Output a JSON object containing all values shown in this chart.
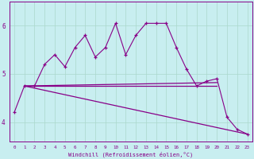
{
  "xlabel": "Windchill (Refroidissement éolien,°C)",
  "background_color": "#c8eef0",
  "line_color": "#880088",
  "xlim": [
    -0.5,
    23.5
  ],
  "ylim": [
    3.6,
    6.5
  ],
  "yticks": [
    4,
    5,
    6
  ],
  "xticks": [
    0,
    1,
    2,
    3,
    4,
    5,
    6,
    7,
    8,
    9,
    10,
    11,
    12,
    13,
    14,
    15,
    16,
    17,
    18,
    19,
    20,
    21,
    22,
    23
  ],
  "curve1_x": [
    0,
    1,
    2,
    3,
    4,
    5,
    6,
    7,
    8,
    9,
    10,
    11,
    12,
    13,
    14,
    15,
    16,
    17,
    18,
    19,
    20,
    21,
    22,
    23
  ],
  "curve1_y": [
    4.2,
    4.75,
    4.75,
    5.2,
    5.4,
    5.15,
    5.55,
    5.8,
    5.35,
    5.55,
    6.05,
    5.4,
    5.8,
    6.05,
    6.05,
    6.05,
    5.55,
    5.1,
    4.75,
    4.85,
    4.9,
    4.1,
    3.85,
    3.75
  ],
  "line1": {
    "x": [
      1,
      20
    ],
    "y": [
      4.75,
      4.75
    ]
  },
  "line2": {
    "x": [
      1,
      20
    ],
    "y": [
      4.75,
      4.75
    ]
  },
  "line3": {
    "x": [
      1,
      23
    ],
    "y": [
      4.75,
      3.75
    ]
  },
  "line4": {
    "x": [
      1,
      20,
      23
    ],
    "y": [
      4.75,
      4.75,
      3.75
    ]
  },
  "grid_color": "#aad8cc"
}
